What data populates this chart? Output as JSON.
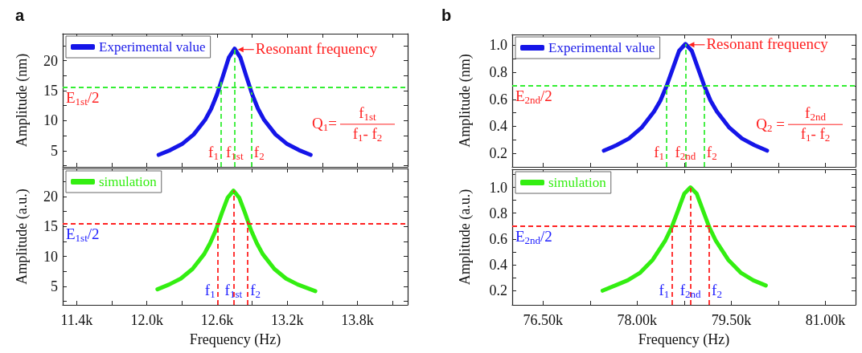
{
  "chart_data": [
    {
      "type": "line",
      "title": "a",
      "ylabel": "Amplitude (nm)",
      "xlim": [
        11280,
        14230
      ],
      "ylim": [
        2.3,
        24.5
      ],
      "xticks": [
        11400,
        11700,
        12000,
        12300,
        12600,
        12900,
        13200,
        13500,
        13800,
        14100
      ],
      "yticks": [
        {
          "value": 2.5,
          "label": null
        },
        5,
        {
          "value": 7.5,
          "label": null
        },
        10,
        {
          "value": 12.5,
          "label": null
        },
        15,
        {
          "value": 17.5,
          "label": null
        },
        20,
        {
          "value": 22.5,
          "label": null
        }
      ],
      "tick_labels": "y",
      "legend": "top left",
      "grid": false,
      "marker": "none",
      "x": [
        12100,
        12200,
        12300,
        12400,
        12500,
        12550,
        12600,
        12650,
        12700,
        12750,
        12800,
        12850,
        12900,
        12950,
        13000,
        13100,
        13200,
        13300,
        13400
      ],
      "series": [
        {
          "name": "Experimental value",
          "color": "#1515e8",
          "values": [
            4.3,
            5.1,
            6.1,
            7.7,
            10.2,
            12.0,
            14.4,
            17.4,
            20.5,
            22.0,
            20.5,
            17.4,
            14.4,
            12.0,
            10.2,
            7.7,
            6.1,
            5.1,
            4.3
          ]
        }
      ],
      "ref_lines": [
        {
          "axis": "y",
          "value": 15.6,
          "label": "E$_{1st}$/2",
          "color": "#33ee33",
          "line_style": "dashed"
        },
        {
          "axis": "x",
          "value": 12634,
          "label": "f$_{1}$",
          "color": "#33ee33",
          "line_style": "dashed"
        },
        {
          "axis": "x",
          "value": 12750,
          "label": "f$_{1st}$",
          "color": "#33ee33",
          "line_style": "dashed"
        },
        {
          "axis": "x",
          "value": 12895,
          "label": "f$_{2}$",
          "color": "#33ee33",
          "line_style": "dashed"
        }
      ],
      "annotations": [
        {
          "text": "Resonant frequency",
          "x": 12750,
          "y": 22.0
        },
        "Q$_{1}$=",
        "f$_{1st}$",
        "f$_{1}$- f$_{2}$"
      ]
    },
    {
      "type": "line",
      "xlabel": "Frequency (Hz)",
      "ylabel": "Amplitude (a.u.)",
      "xlim": [
        11280,
        14230
      ],
      "ylim": [
        1.9,
        24.7
      ],
      "xticks": [
        {
          "value": 11400,
          "label": "11.4k"
        },
        {
          "value": 11700,
          "label": null
        },
        {
          "value": 12000,
          "label": "12.0k"
        },
        {
          "value": 12300,
          "label": null
        },
        {
          "value": 12600,
          "label": "12.6k"
        },
        {
          "value": 12900,
          "label": null
        },
        {
          "value": 13200,
          "label": "13.2k"
        },
        {
          "value": 13500,
          "label": null
        },
        {
          "value": 13800,
          "label": "13.8k"
        },
        {
          "value": 14100,
          "label": null
        }
      ],
      "yticks": [
        {
          "value": 2.5,
          "label": null
        },
        5,
        {
          "value": 7.5,
          "label": null
        },
        10,
        {
          "value": 12.5,
          "label": null
        },
        15,
        {
          "value": 17.5,
          "label": null
        },
        20,
        {
          "value": 22.5,
          "label": null
        }
      ],
      "legend": "top left",
      "grid": false,
      "marker": "none",
      "x": [
        12090,
        12190,
        12290,
        12390,
        12490,
        12540,
        12590,
        12640,
        12690,
        12740,
        12790,
        12840,
        12890,
        12940,
        12990,
        13090,
        13190,
        13290,
        13440
      ],
      "series": [
        {
          "name": "simulation",
          "color": "#33ee11",
          "values": [
            4.5,
            5.3,
            6.3,
            7.9,
            10.4,
            12.2,
            14.4,
            17.2,
            19.8,
            21.0,
            19.8,
            17.2,
            14.4,
            12.2,
            10.4,
            7.9,
            6.3,
            5.3,
            4.2
          ]
        }
      ],
      "ref_lines": [
        {
          "axis": "y",
          "value": 15.5,
          "label": "E$_{1st}$/2",
          "color": "#ff2222",
          "line_style": "dashed"
        },
        {
          "axis": "x",
          "value": 12605,
          "label": "f$_{1}$",
          "color": "#ff2222",
          "line_style": "dashed"
        },
        {
          "axis": "x",
          "value": 12740,
          "label": "f$_{1st}$",
          "color": "#ff2222",
          "line_style": "dashed"
        },
        {
          "axis": "x",
          "value": 12863,
          "label": "f$_{2}$",
          "color": "#ff2222",
          "line_style": "dashed"
        }
      ]
    },
    {
      "type": "line",
      "title": "b",
      "ylabel": "Amplitude (nm)",
      "xlim": [
        76010,
        81480
      ],
      "ylim": [
        0.1,
        1.08
      ],
      "xticks": [
        76500,
        77250,
        78000,
        78750,
        79500,
        80250,
        81000
      ],
      "yticks": [
        0.2,
        {
          "value": 0.3,
          "label": null
        },
        0.4,
        {
          "value": 0.5,
          "label": null
        },
        0.6,
        {
          "value": 0.7,
          "label": null
        },
        0.8,
        {
          "value": 0.9,
          "label": null
        },
        {
          "value": 1,
          "label": "1.0"
        }
      ],
      "tick_labels": "y",
      "legend": "top left",
      "grid": false,
      "marker": "none",
      "x": [
        77470,
        77670,
        77870,
        78070,
        78270,
        78370,
        78470,
        78570,
        78670,
        78770,
        78870,
        78970,
        79070,
        79170,
        79270,
        79470,
        79670,
        79870,
        80070
      ],
      "series": [
        {
          "name": "Experimental value",
          "color": "#1515e8",
          "values": [
            0.22,
            0.26,
            0.31,
            0.39,
            0.51,
            0.59,
            0.7,
            0.83,
            0.96,
            1.01,
            0.96,
            0.83,
            0.7,
            0.59,
            0.51,
            0.39,
            0.31,
            0.26,
            0.22
          ]
        }
      ],
      "ref_lines": [
        {
          "axis": "y",
          "value": 0.7,
          "label": "E$_{2nd}$/2",
          "color": "#33ee33",
          "line_style": "dashed"
        },
        {
          "axis": "x",
          "value": 78470,
          "label": "f$_{1}$",
          "color": "#33ee33",
          "line_style": "dashed"
        },
        {
          "axis": "x",
          "value": 78770,
          "label": "f$_{2nd}$",
          "color": "#33ee33",
          "line_style": "dashed"
        },
        {
          "axis": "x",
          "value": 79070,
          "label": "f$_{2}$",
          "color": "#33ee33",
          "line_style": "dashed"
        }
      ],
      "annotations": [
        {
          "text": "Resonant frequency",
          "x": 78770,
          "y": 1.01
        },
        "Q$_{2}$ =",
        "f$_{2nd}$",
        "f$_{1}$- f$_{2}$"
      ]
    },
    {
      "type": "line",
      "xlabel": "Frequency (Hz)",
      "ylabel": "Amplitude (a.u.)",
      "xlim": [
        76010,
        81480
      ],
      "ylim": [
        0.09,
        1.14
      ],
      "xticks": [
        {
          "value": 76500,
          "label": "76.50k"
        },
        {
          "value": 77250,
          "label": null
        },
        {
          "value": 78000,
          "label": "78.00k"
        },
        {
          "value": 78750,
          "label": null
        },
        {
          "value": 79500,
          "label": "79.50k"
        },
        {
          "value": 80250,
          "label": null
        },
        {
          "value": 81000,
          "label": "81.00k"
        }
      ],
      "yticks": [
        0.2,
        {
          "value": 0.3,
          "label": null
        },
        0.4,
        {
          "value": 0.5,
          "label": null
        },
        0.6,
        {
          "value": 0.7,
          "label": null
        },
        0.8,
        {
          "value": 0.9,
          "label": null
        },
        {
          "value": 1,
          "label": "1.0"
        },
        {
          "value": 1.1,
          "label": null
        }
      ],
      "legend": "top left",
      "grid": false,
      "marker": "none",
      "x": [
        77450,
        77650,
        77850,
        78050,
        78250,
        78450,
        78550,
        78650,
        78750,
        78850,
        78950,
        79050,
        79150,
        79250,
        79450,
        79650,
        79850,
        80050
      ],
      "series": [
        {
          "name": "simulation",
          "color": "#33ee11",
          "values": [
            0.2,
            0.24,
            0.28,
            0.34,
            0.44,
            0.59,
            0.69,
            0.82,
            0.95,
            1.0,
            0.95,
            0.82,
            0.69,
            0.59,
            0.44,
            0.34,
            0.28,
            0.24
          ]
        }
      ],
      "ref_lines": [
        {
          "axis": "y",
          "value": 0.7,
          "label": "E$_{2nd}$/2",
          "color": "#ff2222",
          "line_style": "dashed"
        },
        {
          "axis": "x",
          "value": 78550,
          "label": "f$_{1}$",
          "color": "#ff2222",
          "line_style": "dashed"
        },
        {
          "axis": "x",
          "value": 78850,
          "label": "f$_{2nd}$",
          "color": "#ff2222",
          "line_style": "dashed"
        },
        {
          "axis": "x",
          "value": 79150,
          "label": "f$_{2}$",
          "color": "#ff2222",
          "line_style": "dashed"
        }
      ]
    }
  ]
}
